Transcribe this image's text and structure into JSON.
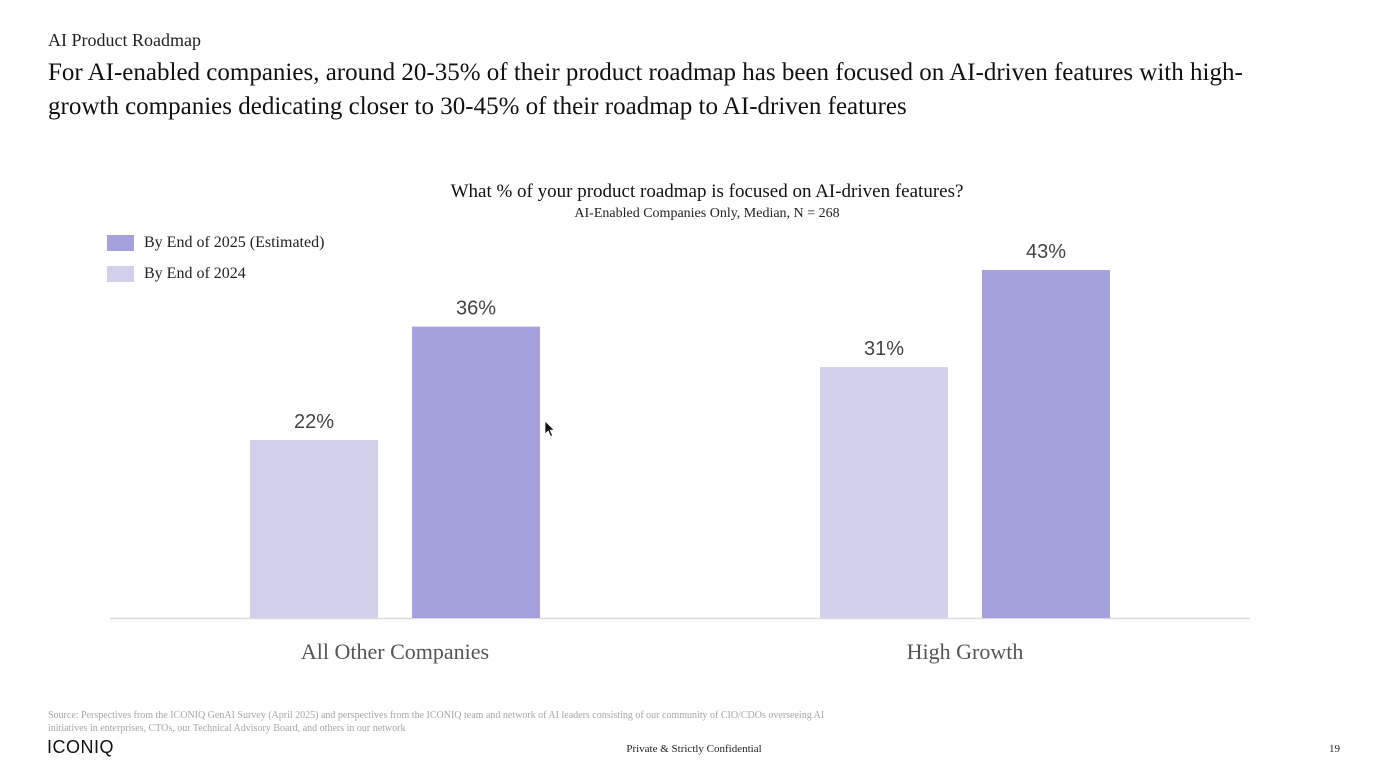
{
  "header": {
    "section_label": "AI Product Roadmap",
    "headline": "For AI-enabled companies, around 20-35% of their product roadmap has been focused on AI-driven features with high-growth companies dedicating closer to 30-45% of their roadmap to AI-driven features"
  },
  "colors": {
    "series_2025": "#a5a1de",
    "series_2024": "#d2d1ec",
    "axis_line": "#dcdcdc",
    "label_text": "#444444"
  },
  "chart_data": {
    "type": "bar",
    "title": "What % of your product roadmap is focused on AI-driven features?",
    "subtitle": "AI-Enabled Companies Only, Median, N = 268",
    "categories": [
      "All Other Companies",
      "High Growth"
    ],
    "series": [
      {
        "name": "By End of 2024",
        "values": [
          22,
          31
        ],
        "labels": [
          "22%",
          "31%"
        ]
      },
      {
        "name": "By End of 2025 (Estimated)",
        "values": [
          36,
          43
        ],
        "labels": [
          "36%",
          "43%"
        ]
      }
    ],
    "legend": [
      {
        "name": "By End of 2025 (Estimated)",
        "series_index": 1
      },
      {
        "name": "By End of 2024",
        "series_index": 0
      }
    ],
    "legend_position": "top-left",
    "ylim": [
      0,
      50
    ],
    "xlabel": "",
    "ylabel": "",
    "grid": false
  },
  "footer": {
    "source": "Source: Perspectives from the ICONIQ GenAI Survey (April 2025) and perspectives from the ICONIQ team and network of AI leaders consisting of our community of CIO/CDOs overseeing AI initiatives in enterprises, CTOs, our Technical Advisory Board, and others in our network",
    "logo": "ICONIQ",
    "confidential": "Private & Strictly Confidential",
    "page_number": "19"
  }
}
